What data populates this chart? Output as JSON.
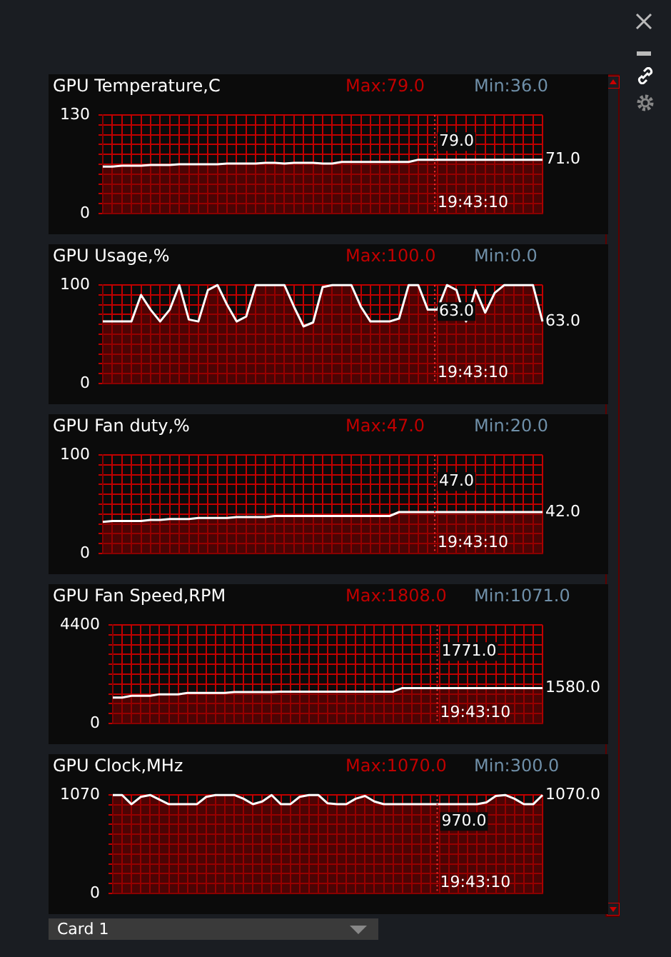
{
  "chart_data": [
    {
      "type": "area",
      "title": "GPU Temperature,C",
      "categories": [
        null,
        null,
        null,
        null,
        null,
        null,
        null,
        null,
        null,
        null,
        null,
        null,
        null,
        null,
        null,
        null,
        null,
        null,
        null,
        null,
        null,
        null,
        null,
        null,
        null,
        null,
        null,
        null,
        null,
        null,
        null,
        null,
        null,
        null,
        null,
        null,
        null,
        null,
        null,
        null,
        null,
        null,
        null,
        null,
        null,
        null,
        null
      ],
      "series": [
        {
          "color": "#ffffff",
          "values": [
            62,
            62,
            63,
            63,
            63,
            64,
            64,
            64,
            65,
            65,
            65,
            65,
            65,
            66,
            66,
            66,
            66,
            67,
            67,
            66,
            67,
            67,
            67,
            66,
            66,
            68,
            68,
            68,
            68,
            68,
            68,
            68,
            68,
            71,
            71,
            71,
            71,
            71,
            71,
            71,
            71,
            71,
            71,
            71,
            71,
            71,
            71
          ]
        }
      ],
      "ylim": [
        0,
        130
      ],
      "yticks": [
        0,
        {
          "value": 13,
          "label": null
        },
        {
          "value": 26,
          "label": null
        },
        {
          "value": 39,
          "label": null
        },
        {
          "value": 52,
          "label": null
        },
        {
          "value": 65,
          "label": null
        },
        {
          "value": 78,
          "label": null
        },
        {
          "value": 91,
          "label": null
        },
        {
          "value": 104,
          "label": null
        },
        {
          "value": 117,
          "label": null
        },
        130
      ],
      "grid": true,
      "legend": false,
      "annotations": [
        "Max:79.0",
        "Min:36.0",
        "79.0",
        "19:43:10",
        "71.0"
      ]
    },
    {
      "type": "area",
      "title": "GPU Usage,%",
      "categories": [
        null,
        null,
        null,
        null,
        null,
        null,
        null,
        null,
        null,
        null,
        null,
        null,
        null,
        null,
        null,
        null,
        null,
        null,
        null,
        null,
        null,
        null,
        null,
        null,
        null,
        null,
        null,
        null,
        null,
        null,
        null,
        null,
        null,
        null,
        null,
        null,
        null,
        null,
        null,
        null,
        null,
        null,
        null,
        null,
        null,
        null,
        null
      ],
      "series": [
        {
          "color": "#ffffff",
          "values": [
            63,
            63,
            63,
            63,
            90,
            75,
            63,
            75,
            100,
            65,
            63,
            95,
            100,
            80,
            63,
            68,
            100,
            100,
            100,
            100,
            78,
            58,
            62,
            98,
            100,
            100,
            100,
            78,
            63,
            63,
            63,
            66,
            100,
            100,
            75,
            75,
            100,
            95,
            63,
            95,
            72,
            92,
            100,
            100,
            100,
            100,
            63
          ]
        }
      ],
      "ylim": [
        0,
        100
      ],
      "yticks": [
        0,
        {
          "value": 10,
          "label": null
        },
        {
          "value": 20,
          "label": null
        },
        {
          "value": 30,
          "label": null
        },
        {
          "value": 40,
          "label": null
        },
        {
          "value": 50,
          "label": null
        },
        {
          "value": 60,
          "label": null
        },
        {
          "value": 70,
          "label": null
        },
        {
          "value": 80,
          "label": null
        },
        {
          "value": 90,
          "label": null
        },
        100
      ],
      "grid": true,
      "legend": false,
      "annotations": [
        "Max:100.0",
        "Min:0.0",
        "63.0",
        "19:43:10",
        "63.0"
      ]
    },
    {
      "type": "area",
      "title": "GPU Fan duty,%",
      "categories": [
        null,
        null,
        null,
        null,
        null,
        null,
        null,
        null,
        null,
        null,
        null,
        null,
        null,
        null,
        null,
        null,
        null,
        null,
        null,
        null,
        null,
        null,
        null,
        null,
        null,
        null,
        null,
        null,
        null,
        null,
        null,
        null,
        null,
        null,
        null,
        null,
        null,
        null,
        null,
        null,
        null,
        null,
        null,
        null,
        null,
        null,
        null
      ],
      "series": [
        {
          "color": "#ffffff",
          "values": [
            32,
            33,
            33,
            33,
            33,
            34,
            34,
            35,
            35,
            35,
            36,
            36,
            36,
            36,
            37,
            37,
            37,
            37,
            38,
            38,
            38,
            38,
            38,
            38,
            38,
            38,
            38,
            38,
            38,
            38,
            38,
            42,
            42,
            42,
            42,
            42,
            42,
            42,
            42,
            42,
            42,
            42,
            42,
            42,
            42,
            42,
            42
          ]
        }
      ],
      "ylim": [
        0,
        100
      ],
      "yticks": [
        0,
        {
          "value": 10,
          "label": null
        },
        {
          "value": 20,
          "label": null
        },
        {
          "value": 30,
          "label": null
        },
        {
          "value": 40,
          "label": null
        },
        {
          "value": 50,
          "label": null
        },
        {
          "value": 60,
          "label": null
        },
        {
          "value": 70,
          "label": null
        },
        {
          "value": 80,
          "label": null
        },
        {
          "value": 90,
          "label": null
        },
        100
      ],
      "grid": true,
      "legend": false,
      "annotations": [
        "Max:47.0",
        "Min:20.0",
        "47.0",
        "19:43:10",
        "42.0"
      ]
    },
    {
      "type": "area",
      "title": "GPU Fan Speed,RPM",
      "categories": [
        null,
        null,
        null,
        null,
        null,
        null,
        null,
        null,
        null,
        null,
        null,
        null,
        null,
        null,
        null,
        null,
        null,
        null,
        null,
        null,
        null,
        null,
        null,
        null,
        null,
        null,
        null,
        null,
        null,
        null,
        null,
        null,
        null,
        null,
        null,
        null,
        null,
        null,
        null,
        null,
        null,
        null,
        null,
        null,
        null,
        null,
        null
      ],
      "series": [
        {
          "color": "#ffffff",
          "values": [
            1150,
            1150,
            1230,
            1230,
            1230,
            1300,
            1300,
            1300,
            1360,
            1360,
            1360,
            1360,
            1360,
            1400,
            1400,
            1400,
            1400,
            1400,
            1420,
            1420,
            1420,
            1420,
            1420,
            1420,
            1420,
            1420,
            1420,
            1420,
            1420,
            1420,
            1420,
            1580,
            1580,
            1580,
            1580,
            1580,
            1580,
            1580,
            1580,
            1580,
            1580,
            1580,
            1580,
            1580,
            1580,
            1580,
            1580
          ]
        }
      ],
      "ylim": [
        0,
        4400
      ],
      "yticks": [
        0,
        {
          "value": 440,
          "label": null
        },
        {
          "value": 880,
          "label": null
        },
        {
          "value": 1320,
          "label": null
        },
        {
          "value": 1760,
          "label": null
        },
        {
          "value": 2200,
          "label": null
        },
        {
          "value": 2640,
          "label": null
        },
        {
          "value": 3080,
          "label": null
        },
        {
          "value": 3520,
          "label": null
        },
        {
          "value": 3960,
          "label": null
        },
        4400
      ],
      "grid": true,
      "legend": false,
      "annotations": [
        "Max:1808.0",
        "Min:1071.0",
        "1771.0",
        "19:43:10",
        "1580.0"
      ]
    },
    {
      "type": "area",
      "title": "GPU Clock,MHz",
      "categories": [
        null,
        null,
        null,
        null,
        null,
        null,
        null,
        null,
        null,
        null,
        null,
        null,
        null,
        null,
        null,
        null,
        null,
        null,
        null,
        null,
        null,
        null,
        null,
        null,
        null,
        null,
        null,
        null,
        null,
        null,
        null,
        null,
        null,
        null,
        null,
        null,
        null,
        null,
        null,
        null,
        null,
        null,
        null,
        null,
        null,
        null,
        null
      ],
      "series": [
        {
          "color": "#ffffff",
          "values": [
            1070,
            1070,
            970,
            1050,
            1070,
            1020,
            970,
            970,
            970,
            970,
            1050,
            1070,
            1070,
            1070,
            1030,
            970,
            1000,
            1070,
            970,
            970,
            1050,
            1070,
            1070,
            980,
            970,
            970,
            1030,
            1060,
            1000,
            970,
            970,
            970,
            970,
            970,
            970,
            970,
            970,
            970,
            970,
            970,
            990,
            1060,
            1070,
            1030,
            970,
            970,
            1070
          ]
        }
      ],
      "ylim": [
        0,
        1070
      ],
      "yticks": [
        0,
        {
          "value": 107,
          "label": null
        },
        {
          "value": 214,
          "label": null
        },
        {
          "value": 321,
          "label": null
        },
        {
          "value": 428,
          "label": null
        },
        {
          "value": 535,
          "label": null
        },
        {
          "value": 642,
          "label": null
        },
        {
          "value": 749,
          "label": null
        },
        {
          "value": 856,
          "label": null
        },
        {
          "value": 963,
          "label": null
        },
        1070
      ],
      "grid": true,
      "legend": false,
      "annotations": [
        "Max:1070.0",
        "Min:300.0",
        "970.0",
        "19:43:10",
        "1070.0"
      ]
    },
    {
      "type": "other",
      "annotations": [
        "Card 1"
      ]
    }
  ]
}
